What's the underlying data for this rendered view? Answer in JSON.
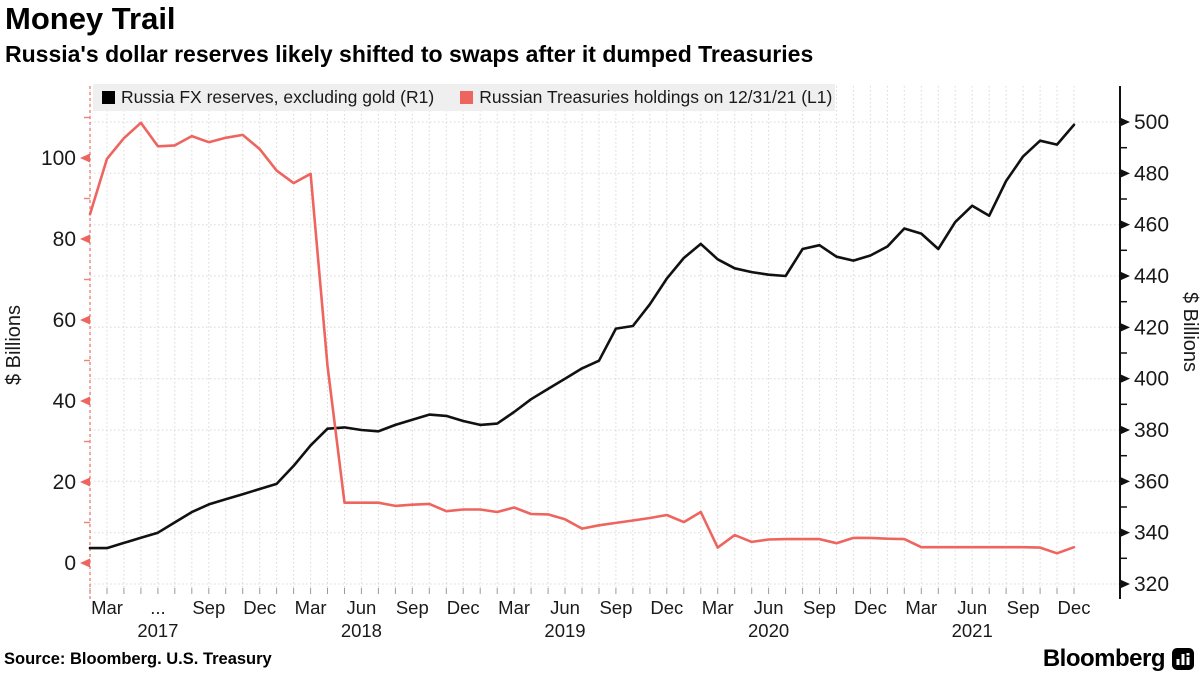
{
  "header": {
    "title": "Money Trail",
    "subtitle": "Russia's dollar reserves likely shifted to swaps after it dumped Treasuries"
  },
  "legend": {
    "items": [
      {
        "label": "Russia FX reserves, excluding gold (R1)",
        "color": "#000000"
      },
      {
        "label": "Russian Treasuries holdings on 12/31/21 (L1)",
        "color": "#ee655f"
      }
    ]
  },
  "footer": {
    "source": "Source: Bloomberg. U.S. Treasury",
    "brand": "Bloomberg"
  },
  "chart_data": {
    "type": "line",
    "frequency": "monthly",
    "x": [
      "Feb 2017",
      "Mar 2017",
      "Apr 2017",
      "May 2017",
      "Jun 2017",
      "Jul 2017",
      "Aug 2017",
      "Sep 2017",
      "Oct 2017",
      "Nov 2017",
      "Dec 2017",
      "Jan 2018",
      "Feb 2018",
      "Mar 2018",
      "Apr 2018",
      "May 2018",
      "Jun 2018",
      "Jul 2018",
      "Aug 2018",
      "Sep 2018",
      "Oct 2018",
      "Nov 2018",
      "Dec 2018",
      "Jan 2019",
      "Feb 2019",
      "Mar 2019",
      "Apr 2019",
      "May 2019",
      "Jun 2019",
      "Jul 2019",
      "Aug 2019",
      "Sep 2019",
      "Oct 2019",
      "Nov 2019",
      "Dec 2019",
      "Jan 2020",
      "Feb 2020",
      "Mar 2020",
      "Apr 2020",
      "May 2020",
      "Jun 2020",
      "Jul 2020",
      "Aug 2020",
      "Sep 2020",
      "Oct 2020",
      "Nov 2020",
      "Dec 2020",
      "Jan 2021",
      "Feb 2021",
      "Mar 2021",
      "Apr 2021",
      "May 2021",
      "Jun 2021",
      "Jul 2021",
      "Aug 2021",
      "Sep 2021",
      "Oct 2021",
      "Nov 2021",
      "Dec 2021"
    ],
    "series": [
      {
        "name": "Russia FX reserves, excluding gold (R1)",
        "axis": "right",
        "color": "#111111",
        "values": [
          334,
          334,
          336,
          338,
          340,
          344,
          348,
          351,
          353,
          355,
          357,
          359,
          366,
          374,
          380.5,
          381,
          380,
          379.5,
          382,
          384,
          386,
          385.5,
          383.5,
          382,
          382.5,
          387,
          392,
          396,
          400,
          404,
          407,
          419.5,
          420.5,
          429,
          439,
          447,
          452.5,
          446.5,
          443,
          441.5,
          440.5,
          440,
          450.5,
          452,
          447.5,
          446,
          448,
          451.5,
          458.5,
          456.5,
          450.5,
          461,
          467.4,
          463.5,
          477,
          486.6,
          492.7,
          491.2,
          498.9
        ]
      },
      {
        "name": "Russian Treasuries holdings on 12/31/21 (L1)",
        "axis": "left",
        "color": "#ee655f",
        "values": [
          86.1,
          99.8,
          104.9,
          108.7,
          102.9,
          103.1,
          105.4,
          103.9,
          105.0,
          105.7,
          102.2,
          96.9,
          93.8,
          96.1,
          48.7,
          14.9,
          14.9,
          14.9,
          14.1,
          14.4,
          14.6,
          12.8,
          13.2,
          13.2,
          12.6,
          13.7,
          12.1,
          12.0,
          10.8,
          8.5,
          9.3,
          9.9,
          10.5,
          11.1,
          11.85,
          10.1,
          12.6,
          3.8,
          6.9,
          5.2,
          5.8,
          5.9,
          5.9,
          5.9,
          4.9,
          6.2,
          6.2,
          6.0,
          5.9,
          3.9,
          3.9,
          3.9,
          3.9,
          3.9,
          3.9,
          3.9,
          3.8,
          2.4,
          3.9
        ]
      }
    ],
    "left_axis": {
      "label": "$ Billions",
      "ticks": [
        0,
        20,
        40,
        60,
        80,
        100
      ],
      "range": [
        0,
        110
      ],
      "color": "#ee655f"
    },
    "right_axis": {
      "label": "$ Billions",
      "ticks": [
        320,
        340,
        360,
        380,
        400,
        420,
        440,
        460,
        480,
        500
      ],
      "range": [
        315,
        505
      ],
      "color": "#111111"
    },
    "x_tick_labels": [
      "Mar",
      "...",
      "Sep",
      "Dec",
      "Mar",
      "Jun",
      "Sep",
      "Dec",
      "Mar",
      "Jun",
      "Sep",
      "Dec",
      "Mar",
      "Jun",
      "Sep",
      "Dec",
      "Mar",
      "Jun",
      "Sep",
      "Dec"
    ],
    "year_labels": [
      "2017",
      "2018",
      "2019",
      "2020",
      "2021"
    ],
    "grid": {
      "horizontal": "right-axis-ticks",
      "vertical": "monthly",
      "color": "#d8d8d8"
    },
    "legend_position": "top-inside"
  }
}
